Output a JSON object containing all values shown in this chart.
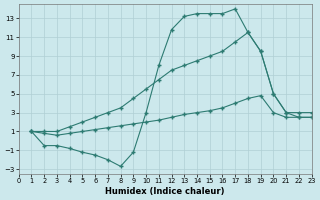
{
  "xlabel": "Humidex (Indice chaleur)",
  "bg_color": "#cce8ec",
  "grid_color": "#b0cfd4",
  "line_color": "#2d7b72",
  "xlim": [
    0,
    23
  ],
  "ylim": [
    -3.5,
    14.5
  ],
  "yticks": [
    -3,
    -1,
    1,
    3,
    5,
    7,
    9,
    11,
    13
  ],
  "xticks": [
    0,
    1,
    2,
    3,
    4,
    5,
    6,
    7,
    8,
    9,
    10,
    11,
    12,
    13,
    14,
    15,
    16,
    17,
    18,
    19,
    20,
    21,
    22,
    23
  ],
  "series": [
    {
      "x": [
        1,
        2,
        3,
        4,
        5,
        6,
        7,
        8,
        9,
        10,
        11,
        12,
        13,
        14,
        15,
        16,
        17,
        18,
        19,
        20,
        21,
        22,
        23
      ],
      "y": [
        1.0,
        -0.5,
        -0.5,
        -0.8,
        -1.2,
        -1.5,
        -2.0,
        -2.7,
        -1.2,
        3.0,
        8.0,
        11.8,
        13.2,
        13.5,
        13.5,
        13.5,
        14.0,
        11.5,
        9.5,
        5.0,
        3.0,
        3.0,
        3.0
      ]
    },
    {
      "x": [
        1,
        2,
        3,
        4,
        5,
        6,
        7,
        8,
        9,
        10,
        11,
        12,
        13,
        14,
        15,
        16,
        17,
        18,
        19,
        20,
        21,
        22,
        23
      ],
      "y": [
        1.0,
        1.0,
        1.0,
        1.5,
        2.0,
        2.5,
        3.0,
        3.5,
        4.5,
        5.5,
        6.5,
        7.5,
        8.0,
        8.5,
        9.0,
        9.5,
        10.5,
        11.5,
        9.5,
        5.0,
        3.0,
        2.5,
        2.5
      ]
    },
    {
      "x": [
        1,
        2,
        3,
        4,
        5,
        6,
        7,
        8,
        9,
        10,
        11,
        12,
        13,
        14,
        15,
        16,
        17,
        18,
        19,
        20,
        21,
        22,
        23
      ],
      "y": [
        1.0,
        0.8,
        0.6,
        0.8,
        1.0,
        1.2,
        1.4,
        1.6,
        1.8,
        2.0,
        2.2,
        2.5,
        2.8,
        3.0,
        3.2,
        3.5,
        4.0,
        4.5,
        4.8,
        3.0,
        2.5,
        2.5,
        2.5
      ]
    }
  ]
}
